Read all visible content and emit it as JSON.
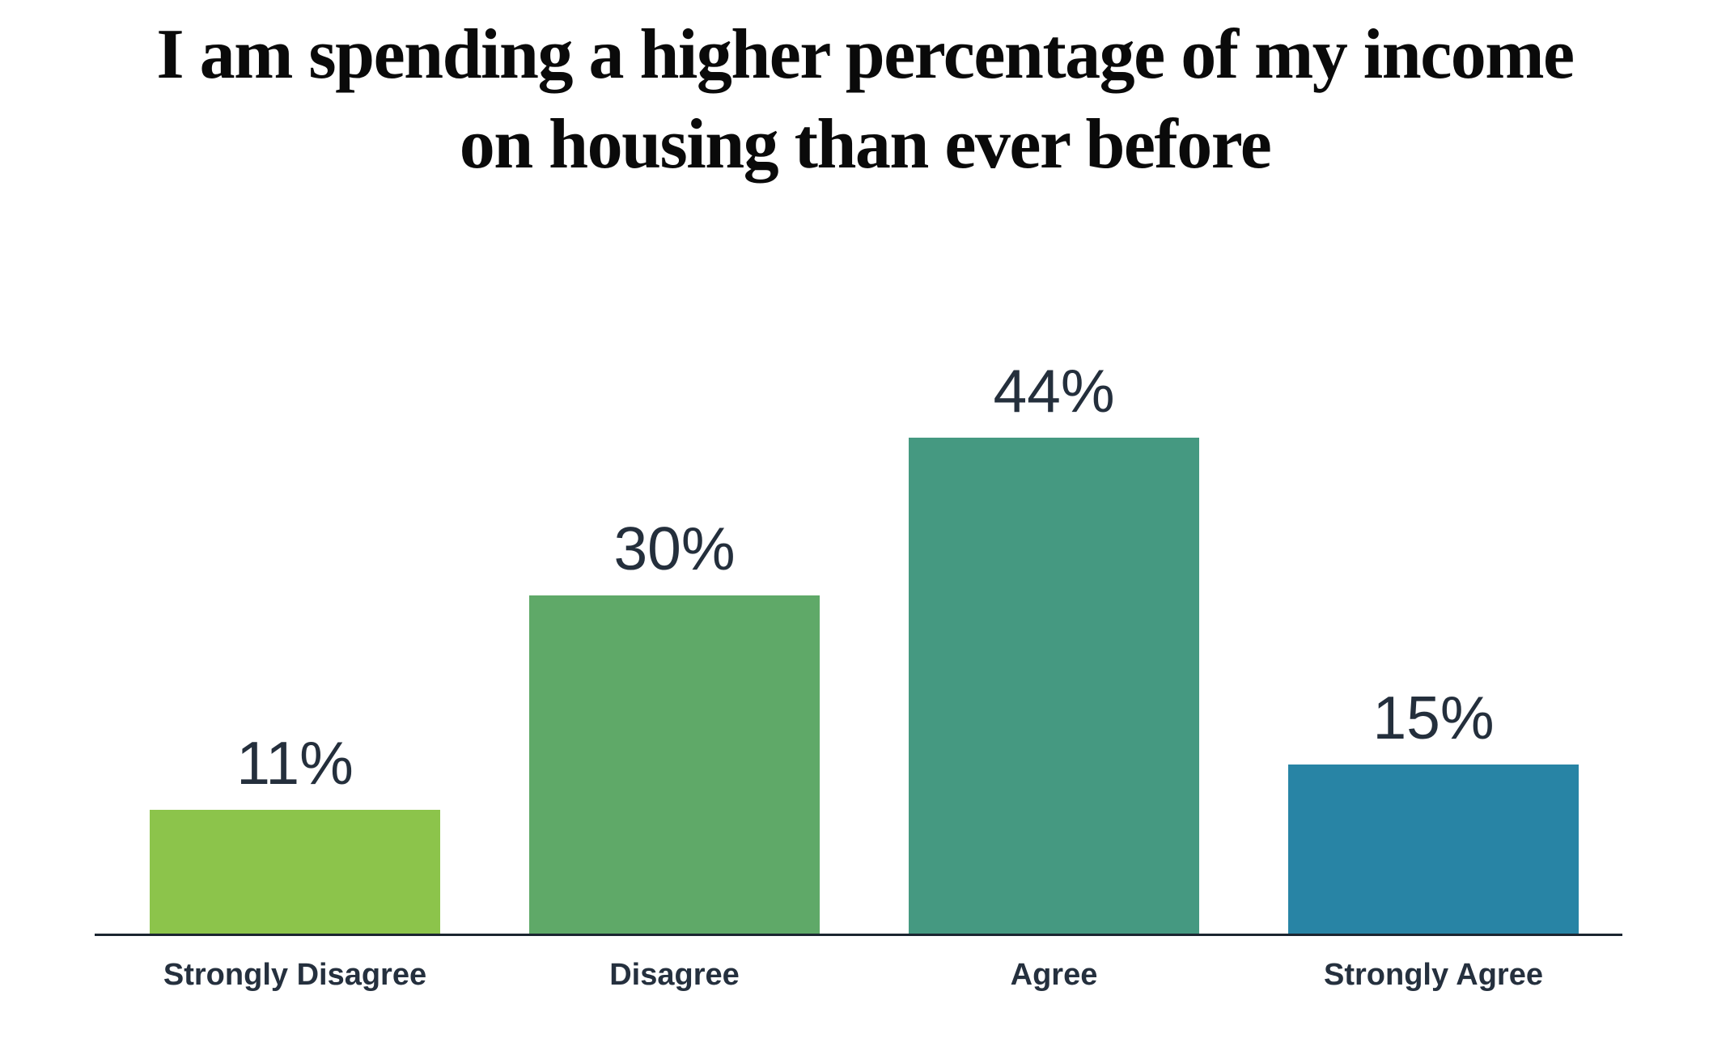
{
  "title": {
    "text": "I am spending a higher percentage of my income on housing than ever before",
    "lines": [
      "I am spending a higher percentage of my income",
      "on housing than ever before"
    ]
  },
  "colors": {
    "background": "#ffffff",
    "title_text": "#0a0a0a",
    "value_label_text": "#242f3c",
    "category_label_text": "#25303e",
    "axis_line": "#1b2530"
  },
  "chart_data": {
    "type": "bar",
    "orientation": "vertical",
    "title": "I am spending a higher percentage of my income on housing than ever before",
    "categories": [
      "Strongly Disagree",
      "Disagree",
      "Agree",
      "Strongly Agree"
    ],
    "values": [
      11,
      30,
      44,
      15
    ],
    "value_labels": [
      "11%",
      "30%",
      "44%",
      "15%"
    ],
    "bar_colors": [
      "#8cc44b",
      "#5fa968",
      "#459981",
      "#2884a5"
    ],
    "unit": "percent",
    "ylim": [
      0,
      50
    ],
    "xlabel": "",
    "ylabel": "",
    "grid": false,
    "legend": "none",
    "value_labels_position": "above-bars",
    "axis_shown": "x-only"
  }
}
